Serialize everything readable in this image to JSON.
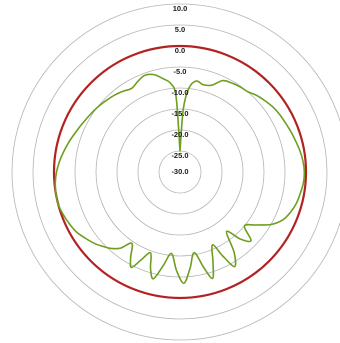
{
  "chart_data": {
    "type": "line",
    "subtype": "polar",
    "title": "",
    "xlabel": "",
    "ylabel": "",
    "rlim": [
      -30,
      10
    ],
    "radial_ticks": [
      10,
      5,
      0,
      -5,
      -10,
      -15,
      -20,
      -25,
      -30
    ],
    "radial_tick_labels": [
      "10.0",
      "5.0",
      "0.0",
      "-5.0",
      "-10.0",
      "-15.0",
      "-20.0",
      "-25.0",
      "-30.0"
    ],
    "angle_unit": "degrees (0 = top, clockwise)",
    "grid": true,
    "legend": "none",
    "series": [
      {
        "color": "#b22222",
        "theta": [
          0,
          90,
          180,
          270
        ],
        "r": [
          0,
          0,
          0,
          0
        ]
      },
      {
        "color": "#6e9e1e",
        "theta": [
          0,
          3,
          6,
          10,
          15,
          20,
          25,
          30,
          35,
          40,
          45,
          50,
          55,
          60,
          65,
          70,
          75,
          80,
          85,
          90,
          95,
          100,
          105,
          110,
          115,
          120,
          125,
          130,
          134,
          138,
          142,
          146,
          150,
          153,
          156,
          160,
          163,
          166,
          170,
          174,
          178,
          182,
          186,
          190,
          194,
          197,
          200,
          204,
          207,
          210,
          214,
          218,
          222,
          226,
          230,
          235,
          240,
          245,
          250,
          255,
          260,
          265,
          270,
          275,
          280,
          285,
          290,
          295,
          300,
          305,
          310,
          315,
          320,
          325,
          330,
          335,
          340,
          345,
          350,
          354,
          357,
          360
        ],
        "r": [
          -25,
          -15,
          -10,
          -8,
          -8.5,
          -8,
          -6,
          -5.5,
          -5.2,
          -5.0,
          -4.2,
          -3.6,
          -3.0,
          -2.6,
          -2.3,
          -1.9,
          -1.5,
          -1.0,
          -0.6,
          -0.4,
          -0.5,
          -0.9,
          -1.3,
          -2.0,
          -3.0,
          -5.0,
          -8.0,
          -10.0,
          -6.5,
          -8.5,
          -12.0,
          -7.0,
          -4.0,
          -7.5,
          -11.0,
          -7.0,
          -3.5,
          -6.5,
          -10.5,
          -7.0,
          -3.5,
          -6.5,
          -10.5,
          -7.5,
          -3.8,
          -6.0,
          -9.5,
          -7.0,
          -4.5,
          -6.5,
          -9.5,
          -7.0,
          -5.5,
          -4.5,
          -3.5,
          -2.5,
          -1.5,
          -0.9,
          -0.4,
          0.0,
          0.0,
          -0.2,
          -0.6,
          -1.2,
          -1.9,
          -2.6,
          -3.3,
          -3.9,
          -4.4,
          -4.8,
          -5.2,
          -5.6,
          -6.0,
          -6.5,
          -7.0,
          -6.2,
          -5.5,
          -6.0,
          -7.5,
          -8.8,
          -12.0,
          -25
        ]
      }
    ]
  }
}
